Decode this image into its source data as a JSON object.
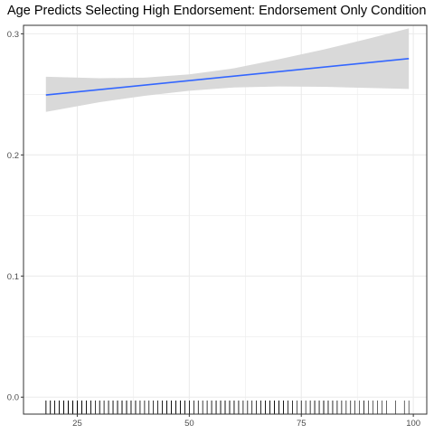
{
  "chart_data": {
    "type": "line",
    "title": "Age Predicts Selecting High Endorsement: Endorsement Only Condition",
    "xlabel": "",
    "ylabel": "",
    "xlim": [
      13,
      103
    ],
    "ylim": [
      -0.014,
      0.307
    ],
    "grid": true,
    "x_ticks": [
      25,
      50,
      75,
      100
    ],
    "y_ticks": [
      0.0,
      0.1,
      0.2,
      0.3
    ],
    "x_tick_labels": [
      "25",
      "50",
      "75",
      "100"
    ],
    "y_tick_labels": [
      "0.0",
      "0.1",
      "0.2",
      "0.3"
    ],
    "colors": {
      "line": "#3366ff",
      "ribbon": "#d9d9d9",
      "rug": "#000000",
      "grid": "#ebebeb"
    },
    "series": [
      {
        "x": [
          18,
          99
        ],
        "y": [
          0.2495,
          0.2795
        ]
      }
    ],
    "confidence_band": {
      "x": [
        18,
        30,
        40,
        50,
        60,
        70,
        80,
        90,
        99
      ],
      "lower": [
        0.2355,
        0.2435,
        0.2488,
        0.253,
        0.2557,
        0.2565,
        0.2562,
        0.2553,
        0.2545
      ],
      "upper": [
        0.2645,
        0.2633,
        0.2638,
        0.2665,
        0.2715,
        0.279,
        0.287,
        0.296,
        0.3045
      ]
    },
    "rug_x": [
      18,
      18,
      18,
      18,
      18,
      18,
      19,
      19,
      19,
      19,
      19,
      19,
      20,
      20,
      20,
      20,
      20,
      20,
      21,
      21,
      21,
      21,
      21,
      22,
      22,
      22,
      22,
      22,
      23,
      23,
      23,
      23,
      23,
      24,
      24,
      24,
      24,
      24,
      25,
      25,
      25,
      25,
      25,
      26,
      26,
      26,
      26,
      26,
      27,
      27,
      27,
      27,
      28,
      28,
      28,
      28,
      28,
      29,
      29,
      29,
      29,
      30,
      30,
      30,
      30,
      30,
      31,
      31,
      31,
      31,
      32,
      32,
      32,
      32,
      33,
      33,
      33,
      33,
      34,
      34,
      34,
      34,
      35,
      35,
      35,
      35,
      36,
      36,
      36,
      36,
      37,
      37,
      37,
      38,
      38,
      38,
      38,
      39,
      39,
      39,
      40,
      40,
      40,
      40,
      41,
      41,
      41,
      42,
      42,
      42,
      42,
      43,
      43,
      43,
      44,
      44,
      44,
      45,
      45,
      45,
      45,
      46,
      46,
      46,
      47,
      47,
      47,
      48,
      48,
      48,
      49,
      49,
      49,
      50,
      50,
      50,
      51,
      51,
      51,
      52,
      52,
      52,
      53,
      53,
      53,
      54,
      54,
      54,
      55,
      55,
      55,
      56,
      56,
      56,
      57,
      57,
      57,
      58,
      58,
      58,
      59,
      59,
      59,
      60,
      60,
      60,
      61,
      61,
      61,
      62,
      62,
      62,
      63,
      63,
      63,
      64,
      64,
      64,
      65,
      65,
      65,
      66,
      66,
      66,
      67,
      67,
      67,
      68,
      68,
      68,
      69,
      69,
      69,
      70,
      70,
      70,
      71,
      71,
      71,
      72,
      72,
      73,
      73,
      73,
      74,
      74,
      75,
      75,
      75,
      76,
      76,
      77,
      77,
      78,
      78,
      78,
      79,
      79,
      80,
      80,
      80,
      81,
      81,
      82,
      82,
      83,
      83,
      84,
      84,
      85,
      85,
      86,
      86,
      87,
      87,
      88,
      89,
      89,
      90,
      91,
      92,
      93,
      94,
      96,
      98,
      99
    ]
  }
}
